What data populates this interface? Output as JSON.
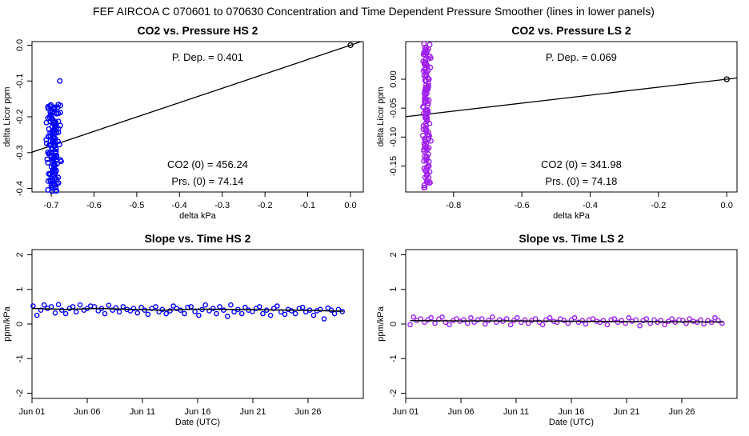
{
  "figure_title": "FEF   AIRCOA C   070601 to 070630   Concentration and Time Dependent Pressure Smoother (lines in lower panels)",
  "colors": {
    "hs": "#0000ff",
    "ls": "#a020f0",
    "line": "#000000"
  },
  "chart_data": [
    {
      "id": "co2-hs",
      "type": "scatter",
      "title": "CO2 vs. Pressure HS 2",
      "xlabel": "delta kPa",
      "ylabel": "delta Licor ppm",
      "xlim": [
        -0.745,
        0.03
      ],
      "ylim": [
        -0.41,
        0.01
      ],
      "xticks": [
        -0.7,
        -0.6,
        -0.5,
        -0.4,
        -0.3,
        -0.2,
        -0.1,
        0.0
      ],
      "xtick_labels": [
        "-0.7",
        "-0.6",
        "-0.5",
        "-0.4",
        "-0.3",
        "-0.2",
        "-0.1",
        "0.0"
      ],
      "yticks": [
        -0.4,
        -0.3,
        -0.2,
        -0.1,
        0.0
      ],
      "ytick_labels": [
        "-0.4",
        "-0.3",
        "-0.2",
        "-0.1",
        "0.0"
      ],
      "annotations": {
        "pdep": "P. Dep. =  0.401",
        "co2_0": "CO2 (0) =  456.24",
        "prs_0": "Prs. (0) =  74.14"
      },
      "cluster": {
        "x_center": -0.695,
        "x_spread": 0.018,
        "y_min": -0.41,
        "y_max": -0.165,
        "count": 140,
        "outliers": [
          [
            -0.68,
            -0.1
          ]
        ]
      },
      "reference_point": [
        0.0,
        0.0
      ],
      "fit_line": {
        "slope": 0.401,
        "intercept": 0.0
      }
    },
    {
      "id": "co2-ls",
      "type": "scatter",
      "title": "CO2 vs. Pressure LS 2",
      "xlabel": "delta kPa",
      "ylabel": "delta Licor ppm",
      "xlim": [
        -0.94,
        0.03
      ],
      "ylim": [
        -0.195,
        0.065
      ],
      "xticks": [
        -0.8,
        -0.6,
        -0.4,
        -0.2,
        0.0
      ],
      "xtick_labels": [
        "-0.8",
        "-0.6",
        "-0.4",
        "-0.2",
        "0.0"
      ],
      "yticks": [
        -0.15,
        -0.1,
        -0.05,
        0.0
      ],
      "ytick_labels": [
        "-0.15",
        "-0.10",
        "-0.05",
        "0.00"
      ],
      "annotations": {
        "pdep": "P. Dep. =  0.069",
        "co2_0": "CO2 (0) =  341.98",
        "prs_0": "Prs. (0) =  74.18"
      },
      "cluster": {
        "x_center": -0.88,
        "x_spread": 0.012,
        "y_min": -0.19,
        "y_max": 0.06,
        "count": 140,
        "outliers": []
      },
      "reference_point": [
        0.0,
        0.0
      ],
      "fit_line": {
        "slope": 0.069,
        "intercept": 0.0
      }
    },
    {
      "id": "slope-hs",
      "type": "line",
      "title": "Slope vs. Time HS 2",
      "xlabel": "Date (UTC)",
      "ylabel": "ppm/kPa",
      "xlim": [
        0.0,
        30.0
      ],
      "ylim": [
        -2.15,
        2.15
      ],
      "xticks": [
        0,
        5,
        10,
        15,
        20,
        25
      ],
      "xtick_labels": [
        "Jun 01",
        "Jun 06",
        "Jun 11",
        "Jun 16",
        "Jun 21",
        "Jun 26"
      ],
      "yticks": [
        -2,
        -1,
        0,
        1,
        2
      ],
      "ytick_labels": [
        "-2",
        "-1",
        "0",
        "1",
        "2"
      ],
      "x": [
        0.1,
        0.45,
        0.8,
        1.1,
        1.4,
        1.75,
        2.1,
        2.4,
        2.7,
        3.05,
        3.4,
        3.7,
        4.0,
        4.35,
        4.7,
        5.0,
        5.3,
        5.65,
        6.0,
        6.3,
        6.6,
        6.95,
        7.3,
        7.6,
        7.9,
        8.25,
        8.6,
        8.9,
        9.2,
        9.55,
        9.9,
        10.2,
        10.5,
        10.85,
        11.2,
        11.5,
        11.8,
        12.15,
        12.5,
        12.8,
        13.1,
        13.45,
        13.8,
        14.1,
        14.4,
        14.75,
        15.1,
        15.4,
        15.7,
        16.05,
        16.4,
        16.7,
        17.0,
        17.35,
        17.7,
        18.0,
        18.3,
        18.65,
        19.0,
        19.3,
        19.6,
        19.95,
        20.3,
        20.6,
        20.9,
        21.25,
        21.6,
        21.9,
        22.2,
        22.55,
        22.9,
        23.2,
        23.5,
        23.85,
        24.2,
        24.5,
        24.8,
        25.15,
        25.5,
        25.8,
        26.1,
        26.45,
        26.8,
        27.1,
        27.4,
        27.75,
        28.1
      ],
      "values": [
        0.52,
        0.25,
        0.4,
        0.55,
        0.45,
        0.5,
        0.32,
        0.56,
        0.4,
        0.3,
        0.45,
        0.5,
        0.35,
        0.55,
        0.4,
        0.45,
        0.52,
        0.5,
        0.38,
        0.45,
        0.3,
        0.54,
        0.4,
        0.47,
        0.35,
        0.5,
        0.42,
        0.38,
        0.45,
        0.32,
        0.48,
        0.4,
        0.28,
        0.45,
        0.5,
        0.35,
        0.42,
        0.3,
        0.38,
        0.52,
        0.45,
        0.4,
        0.3,
        0.48,
        0.5,
        0.36,
        0.25,
        0.42,
        0.55,
        0.38,
        0.45,
        0.3,
        0.5,
        0.4,
        0.22,
        0.55,
        0.35,
        0.42,
        0.3,
        0.48,
        0.4,
        0.36,
        0.45,
        0.5,
        0.3,
        0.4,
        0.25,
        0.45,
        0.52,
        0.35,
        0.28,
        0.42,
        0.38,
        0.3,
        0.45,
        0.48,
        0.35,
        0.4,
        0.25,
        0.38,
        0.42,
        0.15,
        0.46,
        0.4,
        0.3,
        0.42,
        0.36
      ],
      "smooth": [
        [
          0,
          0.45
        ],
        [
          3,
          0.42
        ],
        [
          6,
          0.45
        ],
        [
          9,
          0.42
        ],
        [
          12,
          0.4
        ],
        [
          15,
          0.43
        ],
        [
          18,
          0.42
        ],
        [
          21,
          0.41
        ],
        [
          24,
          0.4
        ],
        [
          27,
          0.38
        ],
        [
          28.2,
          0.37
        ]
      ]
    },
    {
      "id": "slope-ls",
      "type": "line",
      "title": "Slope vs. Time LS 2",
      "xlabel": "Date (UTC)",
      "ylabel": "ppm/kPa",
      "xlim": [
        0.0,
        30.0
      ],
      "ylim": [
        -2.15,
        2.15
      ],
      "xticks": [
        0,
        5,
        10,
        15,
        20,
        25
      ],
      "xtick_labels": [
        "Jun 01",
        "Jun 06",
        "Jun 11",
        "Jun 16",
        "Jun 21",
        "Jun 26"
      ],
      "yticks": [
        -2,
        -1,
        0,
        1,
        2
      ],
      "ytick_labels": [
        "-2",
        "-1",
        "0",
        "1",
        "2"
      ],
      "x": [
        0.4,
        0.7,
        1.0,
        1.35,
        1.7,
        2.0,
        2.3,
        2.65,
        3.0,
        3.3,
        3.6,
        3.95,
        4.3,
        4.6,
        4.9,
        5.25,
        5.6,
        5.9,
        6.2,
        6.55,
        6.9,
        7.2,
        7.5,
        7.85,
        8.2,
        8.5,
        8.8,
        9.15,
        9.5,
        9.8,
        10.1,
        10.45,
        10.8,
        11.1,
        11.4,
        11.75,
        12.1,
        12.4,
        12.7,
        13.05,
        13.4,
        13.7,
        14.0,
        14.35,
        14.7,
        15.0,
        15.3,
        15.65,
        16.0,
        16.3,
        16.6,
        16.95,
        17.3,
        17.6,
        17.9,
        18.25,
        18.6,
        18.9,
        19.2,
        19.55,
        19.9,
        20.2,
        20.5,
        20.85,
        21.2,
        21.5,
        21.8,
        22.15,
        22.5,
        22.8,
        23.1,
        23.45,
        23.8,
        24.1,
        24.4,
        24.75,
        25.1,
        25.4,
        25.7,
        26.05,
        26.4,
        26.7,
        27.0,
        27.35,
        27.7,
        28.0,
        28.3,
        28.65
      ],
      "values": [
        -0.02,
        0.2,
        0.1,
        0.15,
        0.05,
        0.12,
        0.18,
        0.02,
        0.14,
        0.2,
        0.05,
        -0.02,
        0.1,
        0.15,
        0.08,
        0.12,
        0.02,
        0.18,
        0.05,
        0.12,
        0.15,
        0.0,
        0.1,
        0.2,
        0.05,
        0.12,
        0.08,
        0.15,
        -0.02,
        0.1,
        0.18,
        0.05,
        0.12,
        0.02,
        0.1,
        0.15,
        0.05,
        -0.02,
        0.12,
        0.18,
        0.08,
        0.05,
        0.15,
        0.1,
        0.02,
        0.12,
        0.18,
        0.05,
        0.1,
        0.0,
        0.12,
        0.15,
        0.08,
        0.05,
        0.1,
        -0.02,
        0.12,
        0.15,
        0.05,
        0.1,
        0.02,
        0.18,
        0.08,
        0.12,
        -0.05,
        0.1,
        0.15,
        0.02,
        0.12,
        0.05,
        0.1,
        -0.02,
        0.08,
        0.15,
        0.05,
        0.12,
        0.1,
        0.02,
        0.15,
        0.08,
        0.05,
        0.12,
        0.0,
        0.1,
        0.05,
        0.18,
        0.1,
        0.02
      ],
      "smooth": [
        [
          0.4,
          0.1
        ],
        [
          5,
          0.09
        ],
        [
          10,
          0.09
        ],
        [
          15,
          0.08
        ],
        [
          20,
          0.07
        ],
        [
          25,
          0.06
        ],
        [
          28.7,
          0.06
        ]
      ]
    }
  ]
}
